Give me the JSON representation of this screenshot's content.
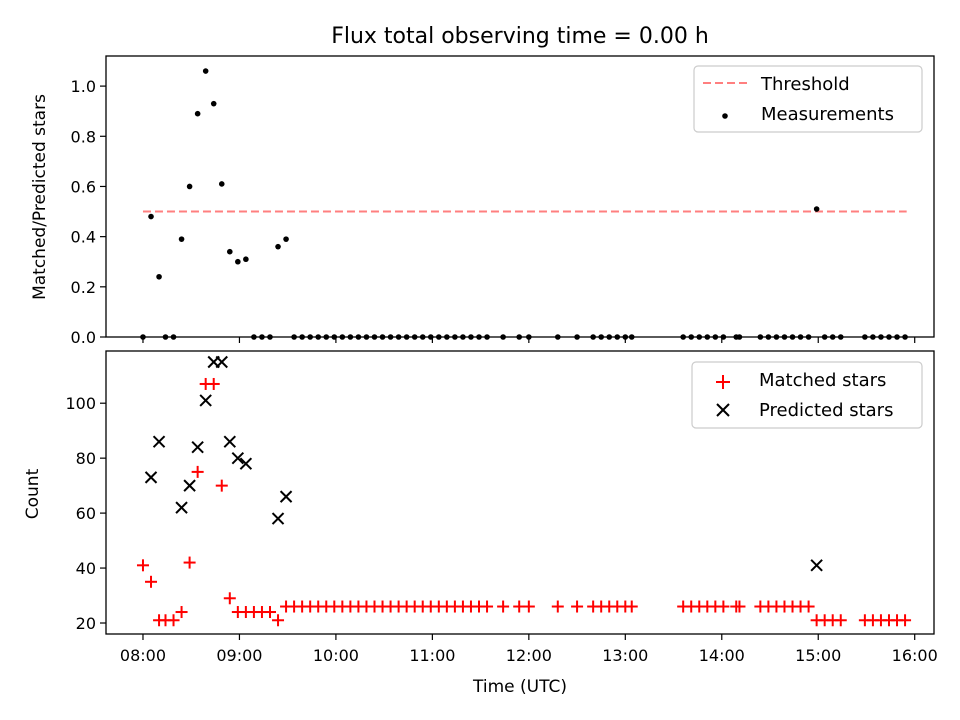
{
  "chart_data": {
    "title": "Flux total observing time = 0.00 h",
    "panels": [
      {
        "type": "scatter",
        "ylabel": "Matched/Predicted stars",
        "ylim": [
          0,
          1.12
        ],
        "yticks": [
          "0.0",
          "0.2",
          "0.4",
          "0.6",
          "0.8",
          "1.0"
        ],
        "legend": {
          "placement": "top-right",
          "threshold_label": "Threshold",
          "measurements_label": "Measurements"
        },
        "threshold": {
          "value": 0.5,
          "x_start": "08:00",
          "x_end": "15:55",
          "color": "#ff7f7f"
        },
        "measurements": [
          [
            "08:00",
            0.0
          ],
          [
            "08:05",
            0.48
          ],
          [
            "08:10",
            0.24
          ],
          [
            "08:14",
            0.0
          ],
          [
            "08:19",
            0.0
          ],
          [
            "08:24",
            0.39
          ],
          [
            "08:29",
            0.6
          ],
          [
            "08:34",
            0.89
          ],
          [
            "08:39",
            1.06
          ],
          [
            "08:44",
            0.93
          ],
          [
            "08:49",
            0.61
          ],
          [
            "08:54",
            0.34
          ],
          [
            "08:59",
            0.3
          ],
          [
            "09:04",
            0.31
          ],
          [
            "09:09",
            0.0
          ],
          [
            "09:14",
            0.0
          ],
          [
            "09:19",
            0.0
          ],
          [
            "09:24",
            0.36
          ],
          [
            "09:29",
            0.39
          ],
          [
            "09:34",
            0.0
          ],
          [
            "09:39",
            0.0
          ],
          [
            "09:44",
            0.0
          ],
          [
            "09:49",
            0.0
          ],
          [
            "09:54",
            0.0
          ],
          [
            "09:59",
            0.0
          ],
          [
            "10:04",
            0.0
          ],
          [
            "10:09",
            0.0
          ],
          [
            "10:14",
            0.0
          ],
          [
            "10:19",
            0.0
          ],
          [
            "10:24",
            0.0
          ],
          [
            "10:29",
            0.0
          ],
          [
            "10:34",
            0.0
          ],
          [
            "10:39",
            0.0
          ],
          [
            "10:44",
            0.0
          ],
          [
            "10:49",
            0.0
          ],
          [
            "10:54",
            0.0
          ],
          [
            "10:59",
            0.0
          ],
          [
            "11:04",
            0.0
          ],
          [
            "11:09",
            0.0
          ],
          [
            "11:14",
            0.0
          ],
          [
            "11:19",
            0.0
          ],
          [
            "11:24",
            0.0
          ],
          [
            "11:29",
            0.0
          ],
          [
            "11:34",
            0.0
          ],
          [
            "11:44",
            0.0
          ],
          [
            "11:54",
            0.0
          ],
          [
            "12:00",
            0.0
          ],
          [
            "12:18",
            0.0
          ],
          [
            "12:30",
            0.0
          ],
          [
            "12:40",
            0.0
          ],
          [
            "12:45",
            0.0
          ],
          [
            "12:50",
            0.0
          ],
          [
            "12:55",
            0.0
          ],
          [
            "13:00",
            0.0
          ],
          [
            "13:04",
            0.0
          ],
          [
            "13:36",
            0.0
          ],
          [
            "13:41",
            0.0
          ],
          [
            "13:46",
            0.0
          ],
          [
            "13:51",
            0.0
          ],
          [
            "13:56",
            0.0
          ],
          [
            "14:01",
            0.0
          ],
          [
            "14:09",
            0.0
          ],
          [
            "14:11",
            0.0
          ],
          [
            "14:24",
            0.0
          ],
          [
            "14:29",
            0.0
          ],
          [
            "14:34",
            0.0
          ],
          [
            "14:39",
            0.0
          ],
          [
            "14:44",
            0.0
          ],
          [
            "14:49",
            0.0
          ],
          [
            "14:54",
            0.0
          ],
          [
            "14:59",
            0.51
          ],
          [
            "15:04",
            0.0
          ],
          [
            "15:09",
            0.0
          ],
          [
            "15:14",
            0.0
          ],
          [
            "15:29",
            0.0
          ],
          [
            "15:34",
            0.0
          ],
          [
            "15:39",
            0.0
          ],
          [
            "15:44",
            0.0
          ],
          [
            "15:49",
            0.0
          ],
          [
            "15:54",
            0.0
          ]
        ]
      },
      {
        "type": "scatter",
        "ylabel": "Count",
        "ylim": [
          16,
          119
        ],
        "yticks": [
          "20",
          "40",
          "60",
          "80",
          "100"
        ],
        "legend": {
          "placement": "top-right",
          "matched_label": "Matched stars",
          "predicted_label": "Predicted stars"
        },
        "colors": {
          "matched": "#ff0000",
          "predicted": "#000000"
        },
        "matched": [
          [
            "08:00",
            41
          ],
          [
            "08:05",
            35
          ],
          [
            "08:10",
            21
          ],
          [
            "08:14",
            21
          ],
          [
            "08:19",
            21
          ],
          [
            "08:24",
            24
          ],
          [
            "08:29",
            42
          ],
          [
            "08:34",
            75
          ],
          [
            "08:39",
            107
          ],
          [
            "08:44",
            107
          ],
          [
            "08:49",
            70
          ],
          [
            "08:54",
            29
          ],
          [
            "08:59",
            24
          ],
          [
            "09:04",
            24
          ],
          [
            "09:09",
            24
          ],
          [
            "09:14",
            24
          ],
          [
            "09:19",
            24
          ],
          [
            "09:24",
            21
          ],
          [
            "09:29",
            26
          ],
          [
            "09:34",
            26
          ],
          [
            "09:39",
            26
          ],
          [
            "09:44",
            26
          ],
          [
            "09:49",
            26
          ],
          [
            "09:54",
            26
          ],
          [
            "09:59",
            26
          ],
          [
            "10:04",
            26
          ],
          [
            "10:09",
            26
          ],
          [
            "10:14",
            26
          ],
          [
            "10:19",
            26
          ],
          [
            "10:24",
            26
          ],
          [
            "10:29",
            26
          ],
          [
            "10:34",
            26
          ],
          [
            "10:39",
            26
          ],
          [
            "10:44",
            26
          ],
          [
            "10:49",
            26
          ],
          [
            "10:54",
            26
          ],
          [
            "10:59",
            26
          ],
          [
            "11:04",
            26
          ],
          [
            "11:09",
            26
          ],
          [
            "11:14",
            26
          ],
          [
            "11:19",
            26
          ],
          [
            "11:24",
            26
          ],
          [
            "11:29",
            26
          ],
          [
            "11:34",
            26
          ],
          [
            "11:44",
            26
          ],
          [
            "11:54",
            26
          ],
          [
            "12:00",
            26
          ],
          [
            "12:18",
            26
          ],
          [
            "12:30",
            26
          ],
          [
            "12:40",
            26
          ],
          [
            "12:45",
            26
          ],
          [
            "12:50",
            26
          ],
          [
            "12:55",
            26
          ],
          [
            "13:00",
            26
          ],
          [
            "13:04",
            26
          ],
          [
            "13:36",
            26
          ],
          [
            "13:41",
            26
          ],
          [
            "13:46",
            26
          ],
          [
            "13:51",
            26
          ],
          [
            "13:56",
            26
          ],
          [
            "14:01",
            26
          ],
          [
            "14:09",
            26
          ],
          [
            "14:11",
            26
          ],
          [
            "14:24",
            26
          ],
          [
            "14:29",
            26
          ],
          [
            "14:34",
            26
          ],
          [
            "14:39",
            26
          ],
          [
            "14:44",
            26
          ],
          [
            "14:49",
            26
          ],
          [
            "14:54",
            26
          ],
          [
            "14:59",
            21
          ],
          [
            "15:04",
            21
          ],
          [
            "15:09",
            21
          ],
          [
            "15:14",
            21
          ],
          [
            "15:29",
            21
          ],
          [
            "15:34",
            21
          ],
          [
            "15:39",
            21
          ],
          [
            "15:44",
            21
          ],
          [
            "15:49",
            21
          ],
          [
            "15:54",
            21
          ]
        ],
        "predicted": [
          [
            "08:05",
            73
          ],
          [
            "08:10",
            86
          ],
          [
            "08:24",
            62
          ],
          [
            "08:29",
            70
          ],
          [
            "08:34",
            84
          ],
          [
            "08:39",
            101
          ],
          [
            "08:44",
            115
          ],
          [
            "08:49",
            115
          ],
          [
            "08:54",
            86
          ],
          [
            "08:59",
            80
          ],
          [
            "09:04",
            78
          ],
          [
            "09:24",
            58
          ],
          [
            "09:29",
            66
          ],
          [
            "14:59",
            41
          ]
        ]
      }
    ],
    "xlabel": "Time (UTC)",
    "xlim": [
      "07:37",
      "16:12"
    ],
    "xticks": [
      "08:00",
      "09:00",
      "10:00",
      "11:00",
      "12:00",
      "13:00",
      "14:00",
      "15:00",
      "16:00"
    ]
  }
}
